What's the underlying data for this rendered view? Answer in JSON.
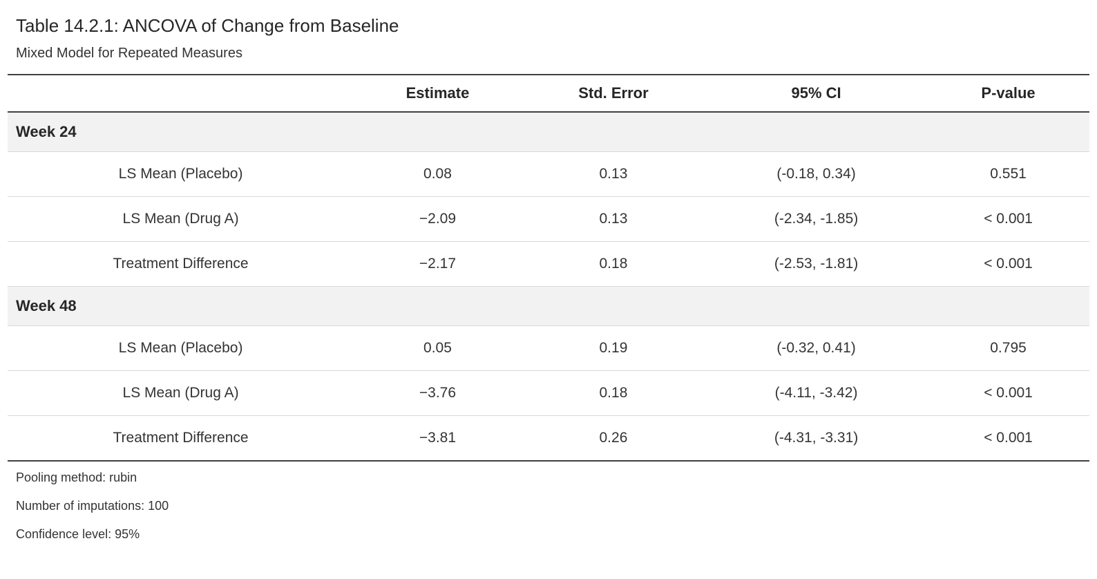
{
  "page": {
    "title": "Table 14.2.1: ANCOVA of Change from Baseline",
    "subtitle": "Mixed Model for Repeated Measures"
  },
  "table": {
    "headers": {
      "stub": "",
      "estimate": "Estimate",
      "std_error": "Std. Error",
      "ci": "95% CI",
      "p_value": "P-value"
    },
    "groups": [
      {
        "label": "Week 24",
        "rows": [
          {
            "label": "LS Mean (Placebo)",
            "estimate": "0.08",
            "std_error": "0.13",
            "ci": "(-0.18, 0.34)",
            "p_value": "0.551"
          },
          {
            "label": "LS Mean (Drug A)",
            "estimate": "−2.09",
            "std_error": "0.13",
            "ci": "(-2.34, -1.85)",
            "p_value": "< 0.001"
          },
          {
            "label": "Treatment Difference",
            "estimate": "−2.17",
            "std_error": "0.18",
            "ci": "(-2.53, -1.81)",
            "p_value": "< 0.001"
          }
        ]
      },
      {
        "label": "Week 48",
        "rows": [
          {
            "label": "LS Mean (Placebo)",
            "estimate": "0.05",
            "std_error": "0.19",
            "ci": "(-0.32, 0.41)",
            "p_value": "0.795"
          },
          {
            "label": "LS Mean (Drug A)",
            "estimate": "−3.76",
            "std_error": "0.18",
            "ci": "(-4.11, -3.42)",
            "p_value": "< 0.001"
          },
          {
            "label": "Treatment Difference",
            "estimate": "−3.81",
            "std_error": "0.26",
            "ci": "(-4.31, -3.31)",
            "p_value": "< 0.001"
          }
        ]
      }
    ],
    "footnotes": [
      "Pooling method: rubin",
      "Number of imputations: 100",
      "Confidence level: 95%"
    ]
  },
  "colors": {
    "text": "#333333",
    "group_row_bg": "#f2f2f2",
    "thick_border": "#404040",
    "thin_border": "#d8d8d8",
    "background": "#ffffff"
  }
}
